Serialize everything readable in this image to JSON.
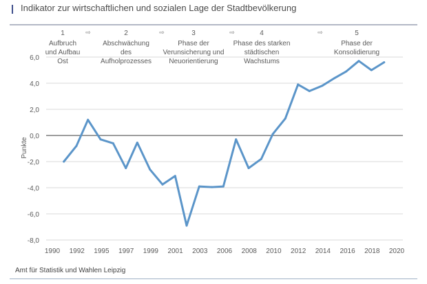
{
  "title": "Indikator zur wirtschaftlichen und sozialen Lage der Stadtbevölkerung",
  "source": "Amt für Statistik und Wahlen Leipzig",
  "colors": {
    "line": "#5b95c9",
    "grid": "#d9d9d9",
    "zero": "#7f7f7f",
    "accent": "#3f4f8c"
  },
  "chart_data": {
    "type": "line",
    "title": "Indikator zur wirtschaftlichen und sozialen Lage der Stadtbevölkerung",
    "xlabel": "",
    "ylabel": "Punkte",
    "ylim": [
      -8.0,
      6.0
    ],
    "xlim": [
      1990,
      2020
    ],
    "grid": true,
    "yticks": [
      "6,0",
      "4,0",
      "2,0",
      "0,0",
      "-2,0",
      "-4,0",
      "-6,0",
      "-8,0"
    ],
    "ytick_values": [
      6,
      4,
      2,
      0,
      -2,
      -4,
      -6,
      -8
    ],
    "xticks": [
      "1990",
      "1992",
      "1995",
      "1997",
      "1999",
      "2001",
      "2003",
      "2006",
      "2008",
      "2010",
      "2012",
      "2014",
      "2016",
      "2018",
      "2020"
    ],
    "series": [
      {
        "name": "Indikator",
        "x": [
          1991.0,
          1992.1,
          1993.1,
          1994.2,
          1995.3,
          1996.4,
          1997.4,
          1998.5,
          1999.6,
          2000.7,
          2001.7,
          2002.8,
          2003.9,
          2004.9,
          2006.0,
          2007.1,
          2008.2,
          2009.2,
          2010.3,
          2011.4,
          2012.4,
          2013.5,
          2014.6,
          2015.6,
          2016.7,
          2017.8,
          2018.9
        ],
        "values": [
          -2.0,
          -0.8,
          1.2,
          -0.3,
          -0.6,
          -2.5,
          -0.55,
          -2.6,
          -3.75,
          -3.1,
          -6.9,
          -3.9,
          -3.95,
          -3.9,
          -0.3,
          -2.5,
          -1.8,
          0.1,
          1.3,
          3.9,
          3.4,
          3.8,
          4.4,
          4.9,
          5.7,
          5.0,
          5.6
        ]
      }
    ],
    "annotations": {
      "arrow": "⇨",
      "phases": [
        {
          "number": "1",
          "lines": [
            "Aufbruch",
            "und Aufbau",
            "Ost"
          ]
        },
        {
          "number": "2",
          "lines": [
            "Abschwächung",
            "des",
            "Aufholprozesses"
          ]
        },
        {
          "number": "3",
          "lines": [
            "Phase der",
            "Verunsicherung und",
            "Neuorientierung"
          ]
        },
        {
          "number": "4",
          "lines": [
            "Phase des starken",
            "städtischen",
            "Wachstums"
          ]
        },
        {
          "number": "5",
          "lines": [
            "Phase der",
            "Konsolidierung"
          ]
        }
      ]
    }
  }
}
